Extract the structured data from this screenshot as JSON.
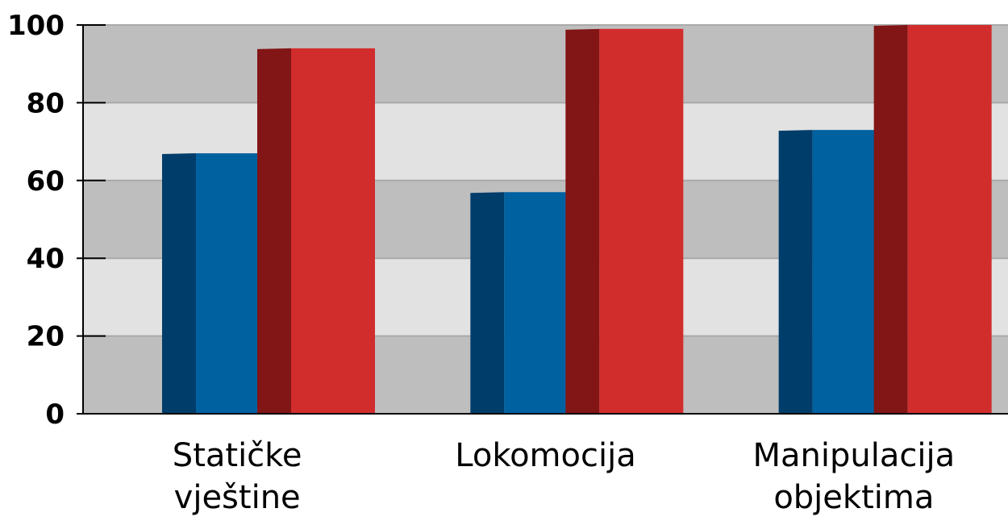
{
  "chart_data": {
    "type": "bar",
    "title": "",
    "xlabel": "",
    "ylabel": "",
    "ylim": [
      0,
      100
    ],
    "yticks": [
      "0",
      "20",
      "40",
      "60",
      "80",
      "100"
    ],
    "categories": [
      [
        "Statičke",
        "vještine"
      ],
      [
        "Lokomocija"
      ],
      [
        "Manipulacija",
        "objektima"
      ]
    ],
    "series": [
      {
        "values": [
          67,
          57,
          73
        ],
        "color": "#0061a1",
        "side_color": "#003d6b"
      },
      {
        "values": [
          94,
          99,
          100
        ],
        "color": "#d12d2d",
        "side_color": "#821515"
      }
    ],
    "grid": "horizontal bands",
    "band_colors": [
      "#bebebe",
      "#e2e2e2"
    ],
    "legend": "none"
  }
}
